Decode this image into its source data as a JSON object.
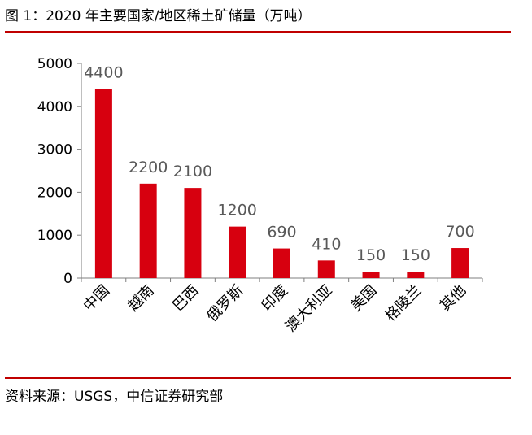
{
  "figure": {
    "title": "图 1：2020 年主要国家/地区稀土矿储量（万吨）",
    "source": "资料来源：USGS，中信证券研究部"
  },
  "chart_data": {
    "type": "bar",
    "title": "图 1：2020 年主要国家/地区稀土矿储量（万吨）",
    "xlabel": "",
    "ylabel": "",
    "categories": [
      "中国",
      "越南",
      "巴西",
      "俄罗斯",
      "印度",
      "澳大利亚",
      "美国",
      "格陵兰",
      "其他"
    ],
    "values": [
      4400,
      2200,
      2100,
      1200,
      690,
      410,
      150,
      150,
      700
    ],
    "data_labels": [
      "4400",
      "2200",
      "2100",
      "1200",
      "690",
      "410",
      "150",
      "150",
      "700"
    ],
    "ylim": [
      0,
      5000
    ],
    "yticks": [
      "0",
      "1000",
      "2000",
      "3000",
      "4000",
      "5000"
    ],
    "ytick_values": [
      0,
      1000,
      2000,
      3000,
      4000,
      5000
    ],
    "grid": false,
    "legend": "none",
    "colors": {
      "bar": "#d7000f",
      "axis": "#7f7f7f",
      "data_label": "#595959",
      "rule": "#c00000"
    }
  }
}
